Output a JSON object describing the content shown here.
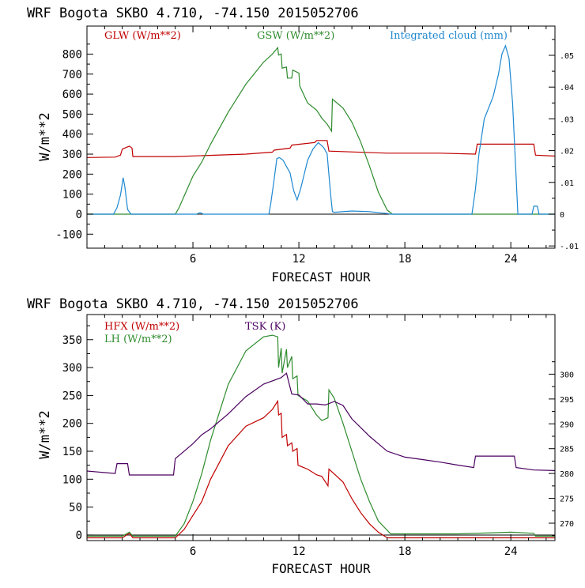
{
  "chart_data": [
    {
      "type": "line",
      "title": "WRF  Bogota SKBO    4.710, -74.150  2015052706",
      "xlabel": "FORECAST HOUR",
      "ylabel": "W/m**2",
      "xlim": [
        0,
        26.5
      ],
      "ylim": [
        -170,
        940
      ],
      "y2lim": [
        -0.0107,
        0.0592
      ],
      "xticks": [
        6,
        12,
        18,
        24
      ],
      "yticks": [
        -100,
        0,
        100,
        200,
        300,
        400,
        500,
        600,
        700,
        800
      ],
      "y2ticks": [
        -0.01,
        0,
        0.01,
        0.02,
        0.03,
        0.04,
        0.05
      ],
      "y2ticklabels": [
        "-.01",
        "0",
        ".01",
        ".02",
        ".03",
        ".04",
        ".05"
      ],
      "legend": [
        {
          "label": "GLW (W/m**2)",
          "color": "#c00000"
        },
        {
          "label": "GSW (W/m**2)",
          "color": "#2e8b2e"
        },
        {
          "label": "Integrated cloud (mm)",
          "color": "#1e88d0"
        }
      ],
      "series": [
        {
          "name": "GLW",
          "axis": "left",
          "color": "#c00000",
          "x": [
            0,
            1.6,
            1.9,
            2.0,
            2.4,
            2.55,
            2.6,
            5.0,
            9.0,
            10.5,
            10.6,
            11.5,
            11.6,
            12.9,
            13.0,
            13.2,
            13.6,
            13.7,
            17,
            20,
            22.0,
            22.1,
            25.3,
            25.4,
            26.5
          ],
          "y": [
            283,
            285,
            295,
            325,
            340,
            330,
            288,
            288,
            300,
            310,
            320,
            330,
            345,
            358,
            368,
            368,
            368,
            315,
            305,
            305,
            300,
            350,
            350,
            295,
            290
          ]
        },
        {
          "name": "GSW",
          "axis": "left",
          "color": "#2e8b2e",
          "x": [
            0,
            5.0,
            5.2,
            6,
            6.5,
            7,
            8,
            9,
            10,
            10.5,
            10.8,
            10.85,
            11.0,
            11.05,
            11.3,
            11.35,
            11.6,
            11.65,
            12.0,
            12.05,
            12.5,
            13,
            13.3,
            13.6,
            13.85,
            13.9,
            14.5,
            15,
            15.5,
            16,
            16.5,
            17,
            17.3,
            26.5
          ],
          "y": [
            0,
            0,
            30,
            190,
            260,
            350,
            510,
            650,
            760,
            800,
            832,
            795,
            800,
            730,
            735,
            680,
            680,
            720,
            705,
            640,
            555,
            520,
            480,
            450,
            415,
            575,
            530,
            460,
            360,
            240,
            110,
            20,
            0,
            0
          ],
          "x_marks": [],
          "y_marks": []
        },
        {
          "name": "Integrated cloud",
          "axis": "right",
          "color": "#1e88d0",
          "x": [
            0,
            1.5,
            1.7,
            1.9,
            2.05,
            2.15,
            2.3,
            2.5,
            2.6,
            6.2,
            6.4,
            6.6,
            10.3,
            10.4,
            10.6,
            10.75,
            10.9,
            11.1,
            11.3,
            11.5,
            11.7,
            11.9,
            12.1,
            12.5,
            12.8,
            13.1,
            13.4,
            13.6,
            13.8,
            13.9,
            14,
            15,
            16,
            17,
            17.2,
            21.8,
            22.0,
            22.2,
            22.5,
            23.0,
            23.3,
            23.5,
            23.7,
            23.9,
            24.1,
            24.4,
            25.2,
            25.3,
            25.5,
            25.6,
            26.5
          ],
          "y": [
            0,
            0,
            0.002,
            0.006,
            0.0115,
            0.0085,
            0.0015,
            0,
            0,
            0,
            0.0005,
            0,
            0,
            0.003,
            0.011,
            0.0175,
            0.0178,
            0.017,
            0.015,
            0.013,
            0.0075,
            0.0045,
            0.008,
            0.017,
            0.0205,
            0.0225,
            0.021,
            0.019,
            0.006,
            0.0008,
            0.0006,
            0.001,
            0.0008,
            0.0002,
            0,
            0,
            0.008,
            0.019,
            0.03,
            0.037,
            0.044,
            0.0505,
            0.053,
            0.049,
            0.035,
            0,
            0,
            0.0025,
            0.0025,
            0,
            0
          ]
        }
      ]
    },
    {
      "type": "line",
      "title": "WRF  Bogota SKBO    4.710, -74.150  2015052706",
      "xlabel": "FORECAST HOUR",
      "ylabel": "W/m**2",
      "xlim": [
        0,
        26.5
      ],
      "ylim": [
        -10,
        395
      ],
      "y2lim": [
        266.5,
        312
      ],
      "xticks": [
        6,
        12,
        18,
        24
      ],
      "yticks": [
        0,
        50,
        100,
        150,
        200,
        250,
        300,
        350
      ],
      "y2ticks": [
        270,
        275,
        280,
        285,
        290,
        295,
        300
      ],
      "y2ticklabels": [
        "270",
        "275",
        "280",
        "285",
        "290",
        "295",
        "300"
      ],
      "legend": [
        {
          "label": "HFX (W/m**2)",
          "color": "#c00000"
        },
        {
          "label": "LH  (W/m**2)",
          "color": "#2e8b2e"
        },
        {
          "label": "TSK (K)",
          "color": "#4b0060"
        }
      ],
      "series": [
        {
          "name": "HFX",
          "axis": "left",
          "color": "#c00000",
          "x": [
            0,
            2.0,
            2.4,
            2.6,
            5.0,
            5.5,
            6,
            6.5,
            7,
            8,
            9,
            10,
            10.5,
            10.8,
            10.85,
            11.0,
            11.05,
            11.3,
            11.35,
            11.6,
            11.65,
            11.9,
            11.95,
            12.5,
            13,
            13.3,
            13.65,
            13.7,
            14.5,
            15,
            15.5,
            16,
            16.5,
            17,
            26.5
          ],
          "y": [
            -5,
            -5,
            3,
            -5,
            -5,
            10,
            35,
            60,
            100,
            160,
            195,
            210,
            225,
            240,
            215,
            218,
            175,
            180,
            160,
            165,
            150,
            155,
            125,
            118,
            108,
            105,
            88,
            118,
            95,
            65,
            40,
            20,
            5,
            -5,
            -5
          ]
        },
        {
          "name": "LH",
          "axis": "left",
          "color": "#2e8b2e",
          "x": [
            0,
            2.0,
            2.4,
            2.6,
            5.0,
            5.5,
            6,
            6.5,
            7,
            8,
            9,
            10,
            10.5,
            10.8,
            10.85,
            11.0,
            11.05,
            11.3,
            11.35,
            11.6,
            11.65,
            11.9,
            11.95,
            12.5,
            13,
            13.3,
            13.65,
            13.7,
            14,
            14.5,
            15,
            15.5,
            16,
            16.5,
            17.2,
            21,
            24,
            25.3,
            25.4,
            26.5
          ],
          "y": [
            -2,
            -2,
            5,
            -2,
            -2,
            20,
            60,
            110,
            170,
            270,
            330,
            355,
            358,
            355,
            300,
            335,
            290,
            333,
            300,
            320,
            280,
            285,
            250,
            240,
            215,
            205,
            210,
            260,
            245,
            200,
            150,
            100,
            60,
            25,
            2,
            2,
            5,
            3,
            -2,
            -2
          ]
        },
        {
          "name": "TSK",
          "axis": "right",
          "color": "#4b0060",
          "x": [
            0,
            1.6,
            1.7,
            2.3,
            2.4,
            4.9,
            5.0,
            5.5,
            6,
            6.5,
            7,
            8,
            9,
            10,
            11,
            11.3,
            11.6,
            12,
            12.5,
            13,
            13.5,
            14,
            14.5,
            15,
            16,
            17,
            18,
            19,
            20,
            21,
            21.9,
            22.0,
            24.2,
            24.3,
            25.3,
            26.5
          ],
          "y": [
            280.5,
            280,
            282,
            282,
            279.7,
            279.7,
            283,
            284.5,
            286,
            287.8,
            289,
            292,
            295.5,
            298,
            299.3,
            300.2,
            296,
            295.8,
            294,
            294,
            293.8,
            294.5,
            293.7,
            291,
            287.5,
            284.5,
            283.3,
            282.8,
            282.3,
            281.7,
            281.2,
            283.5,
            283.5,
            281.2,
            280.7,
            280.6
          ]
        }
      ]
    }
  ]
}
